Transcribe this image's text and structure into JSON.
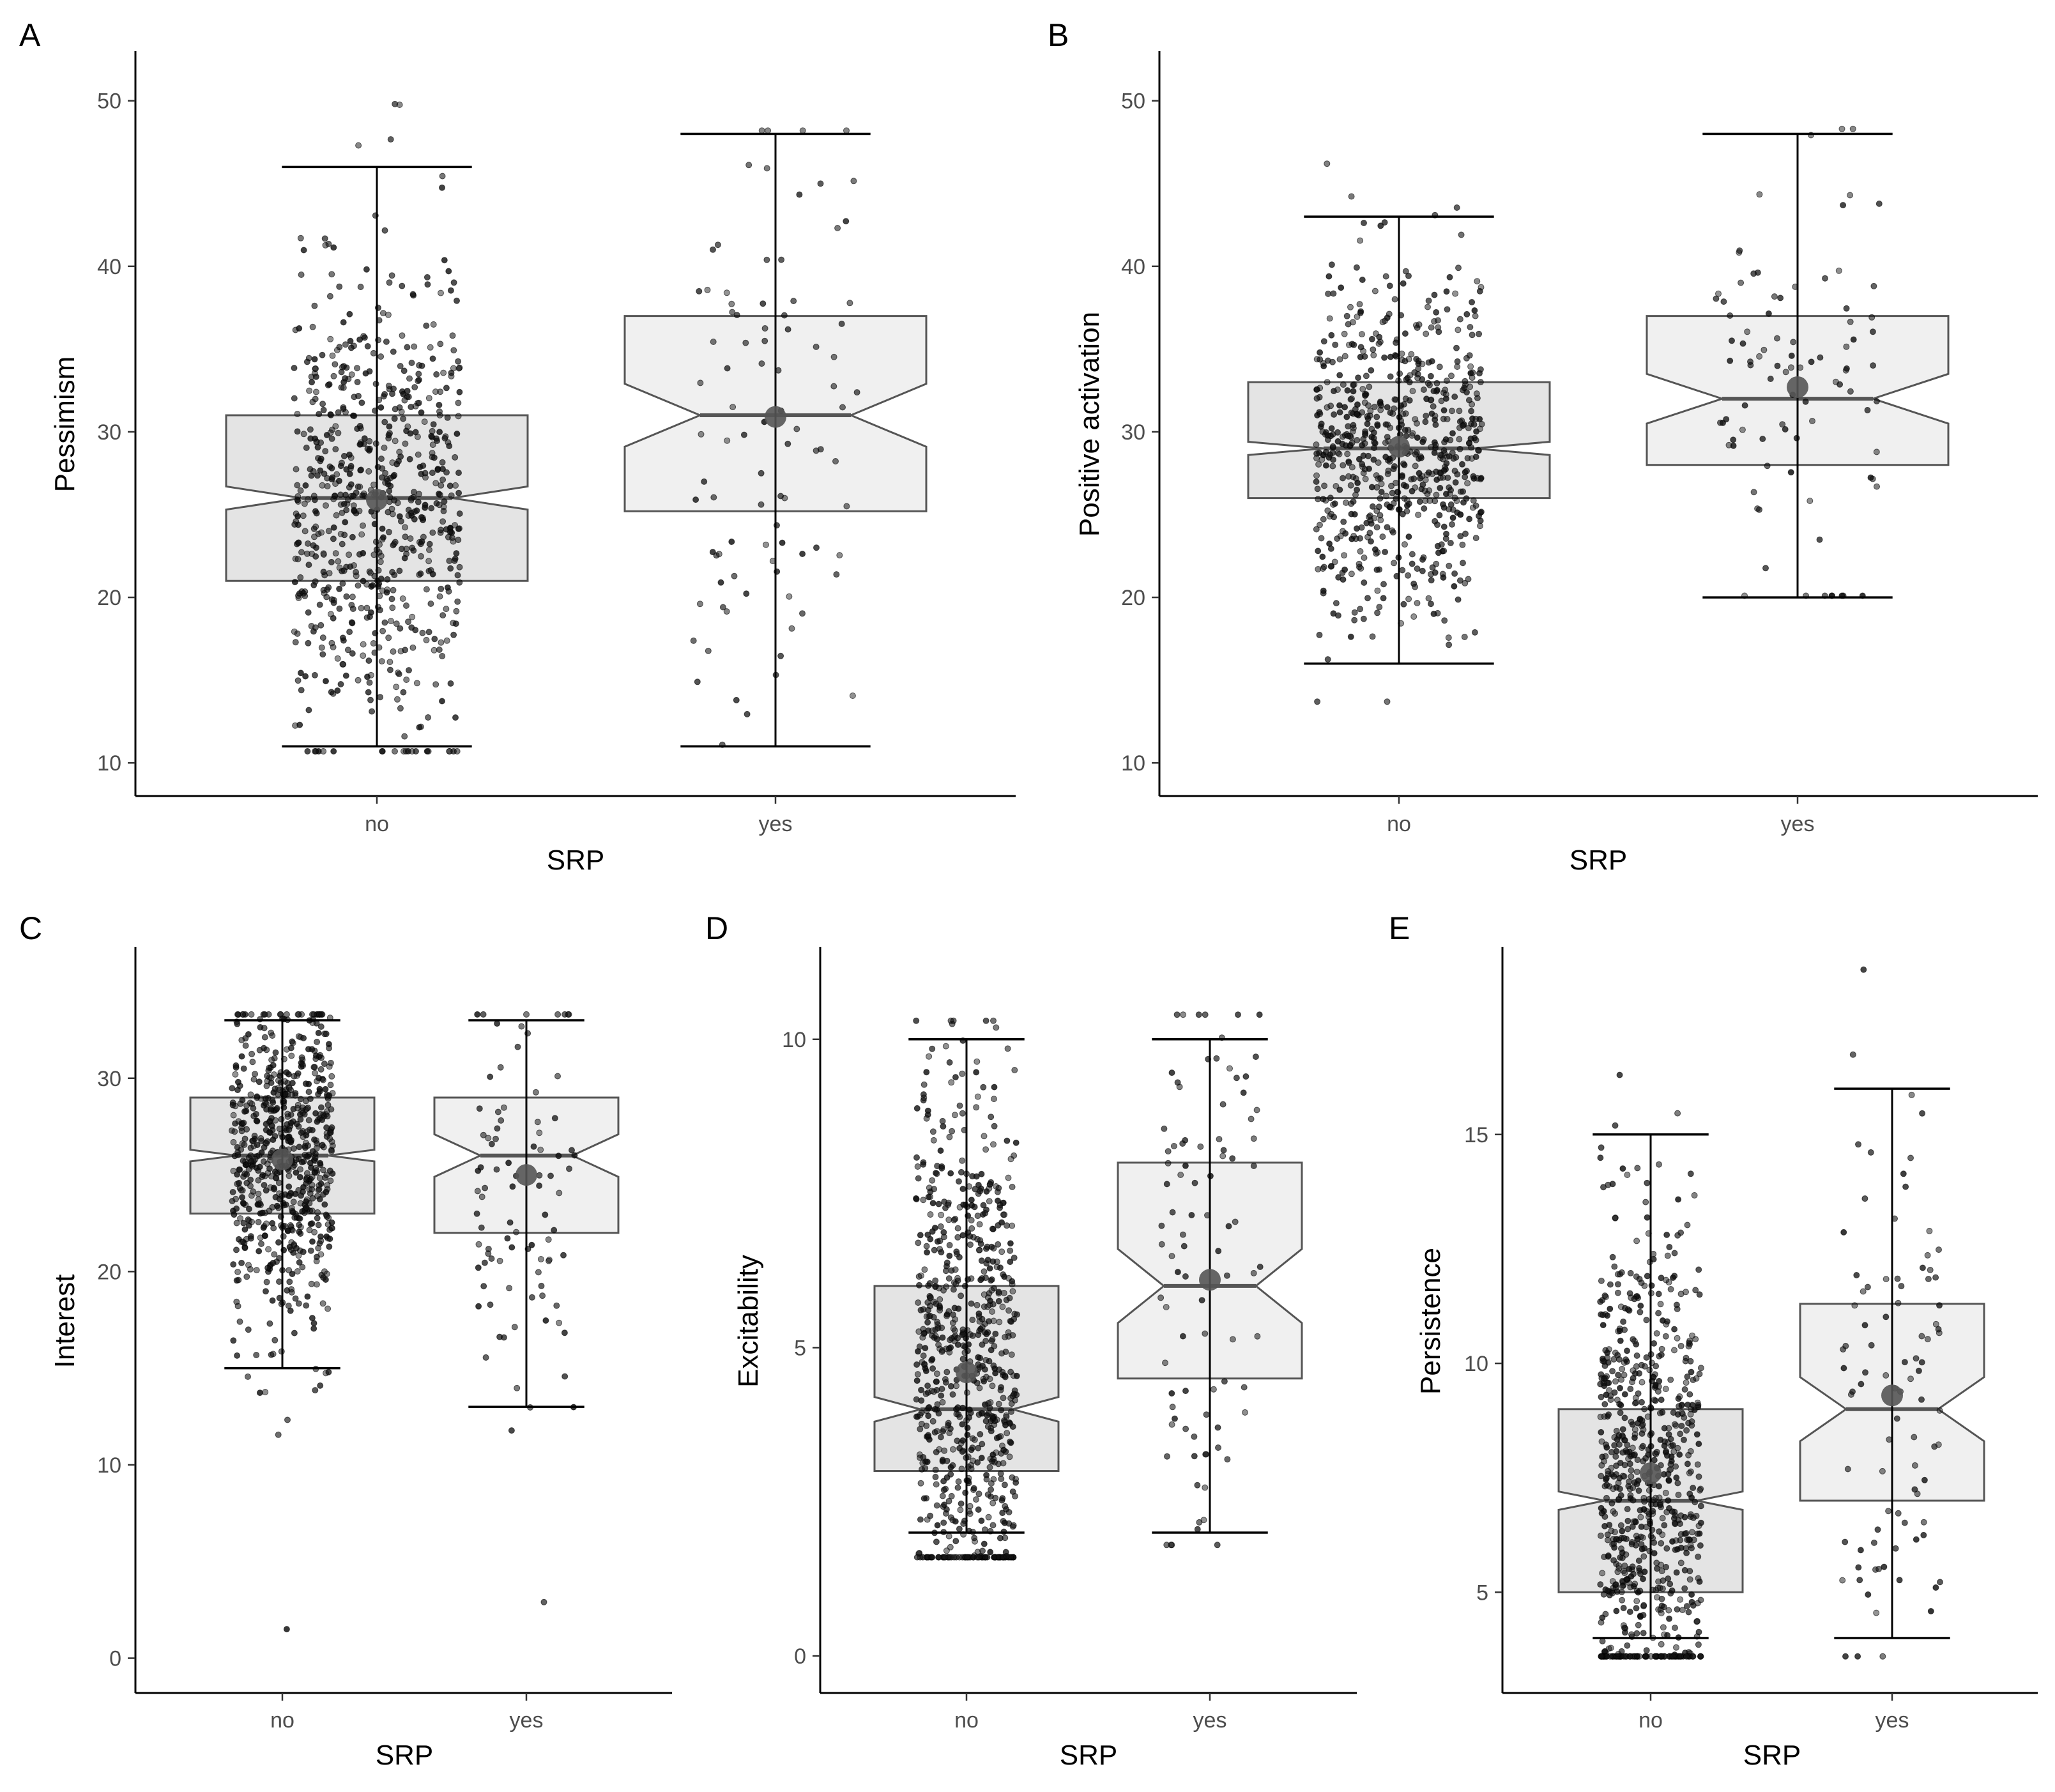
{
  "chart_data": [
    {
      "panel_label": "A",
      "type": "boxplot",
      "title": "",
      "xlabel": "SRP",
      "ylabel": "Pessimism",
      "categories": [
        "no",
        "yes"
      ],
      "ylim": [
        8,
        53
      ],
      "yticks": [
        10,
        20,
        30,
        40,
        50
      ],
      "box_fill": [
        "#e4e4e4",
        "#f0f0f0"
      ],
      "jitter_n": [
        700,
        90
      ],
      "boxes": [
        {
          "category": "no",
          "whisker_low": 11,
          "q1": 21,
          "median": 26,
          "q3": 31,
          "whisker_high": 46,
          "notch_low": 25.3,
          "notch_high": 26.7,
          "mean": 25.9,
          "point_min": 10.7,
          "point_max": 49.8
        },
        {
          "category": "yes",
          "whisker_low": 11,
          "q1": 25.2,
          "median": 31,
          "q3": 37,
          "whisker_high": 48,
          "notch_low": 29.1,
          "notch_high": 32.9,
          "mean": 30.9,
          "point_min": 11.1,
          "point_max": 48.2
        }
      ]
    },
    {
      "panel_label": "B",
      "type": "boxplot",
      "title": "",
      "xlabel": "SRP",
      "ylabel": "Positive activation",
      "categories": [
        "no",
        "yes"
      ],
      "ylim": [
        8,
        53
      ],
      "yticks": [
        10,
        20,
        30,
        40,
        50
      ],
      "box_fill": [
        "#e4e4e4",
        "#f0f0f0"
      ],
      "jitter_n": [
        700,
        90
      ],
      "boxes": [
        {
          "category": "no",
          "whisker_low": 16,
          "q1": 26,
          "median": 29,
          "q3": 33,
          "whisker_high": 43,
          "notch_low": 28.6,
          "notch_high": 29.4,
          "mean": 29.1,
          "point_min": 13.7,
          "point_max": 46.2
        },
        {
          "category": "yes",
          "whisker_low": 20,
          "q1": 28,
          "median": 32,
          "q3": 37,
          "whisker_high": 48,
          "notch_low": 30.5,
          "notch_high": 33.5,
          "mean": 32.7,
          "point_min": 20.1,
          "point_max": 48.3
        }
      ]
    },
    {
      "panel_label": "C",
      "type": "boxplot",
      "title": "",
      "xlabel": "SRP",
      "ylabel": "Interest",
      "categories": [
        "no",
        "yes"
      ],
      "ylim": [
        -1.8,
        36.8
      ],
      "yticks": [
        0,
        10,
        20,
        30
      ],
      "box_fill": [
        "#e4e4e4",
        "#f0f0f0"
      ],
      "jitter_n": [
        700,
        90
      ],
      "boxes": [
        {
          "category": "no",
          "whisker_low": 15,
          "q1": 23,
          "median": 26,
          "q3": 29,
          "whisker_high": 33,
          "notch_low": 25.7,
          "notch_high": 26.3,
          "mean": 25.8,
          "point_min": 1.5,
          "point_max": 33.3
        },
        {
          "category": "yes",
          "whisker_low": 13,
          "q1": 22,
          "median": 26,
          "q3": 29,
          "whisker_high": 33,
          "notch_low": 24.9,
          "notch_high": 27.1,
          "mean": 25,
          "point_min": 2.9,
          "point_max": 33.3
        }
      ]
    },
    {
      "panel_label": "D",
      "type": "boxplot",
      "title": "",
      "xlabel": "SRP",
      "ylabel": "Excitability",
      "categories": [
        "no",
        "yes"
      ],
      "ylim": [
        -0.6,
        11.5
      ],
      "yticks": [
        0,
        5,
        10
      ],
      "box_fill": [
        "#e4e4e4",
        "#f0f0f0"
      ],
      "jitter_n": [
        750,
        90
      ],
      "boxes": [
        {
          "category": "no",
          "whisker_low": 2,
          "q1": 3,
          "median": 4,
          "q3": 6,
          "whisker_high": 10,
          "notch_low": 3.8,
          "notch_high": 4.2,
          "mean": 4.6,
          "point_min": 1.6,
          "point_max": 10.3
        },
        {
          "category": "yes",
          "whisker_low": 2,
          "q1": 4.5,
          "median": 6,
          "q3": 8,
          "whisker_high": 10,
          "notch_low": 5.4,
          "notch_high": 6.6,
          "mean": 6.1,
          "point_min": 1.8,
          "point_max": 10.4
        }
      ]
    },
    {
      "panel_label": "E",
      "type": "boxplot",
      "title": "",
      "xlabel": "SRP",
      "ylabel": "Persistence",
      "categories": [
        "no",
        "yes"
      ],
      "ylim": [
        2.8,
        19.1
      ],
      "yticks": [
        5,
        10,
        15
      ],
      "box_fill": [
        "#e4e4e4",
        "#f0f0f0"
      ],
      "jitter_n": [
        750,
        90
      ],
      "boxes": [
        {
          "category": "no",
          "whisker_low": 4,
          "q1": 5,
          "median": 7,
          "q3": 9,
          "whisker_high": 15,
          "notch_low": 6.8,
          "notch_high": 7.2,
          "mean": 7.6,
          "point_min": 3.6,
          "point_max": 16.3
        },
        {
          "category": "yes",
          "whisker_low": 4,
          "q1": 7,
          "median": 9,
          "q3": 11.3,
          "whisker_high": 16,
          "notch_low": 8.3,
          "notch_high": 9.7,
          "mean": 9.3,
          "point_min": 3.6,
          "point_max": 18.6
        }
      ]
    }
  ]
}
